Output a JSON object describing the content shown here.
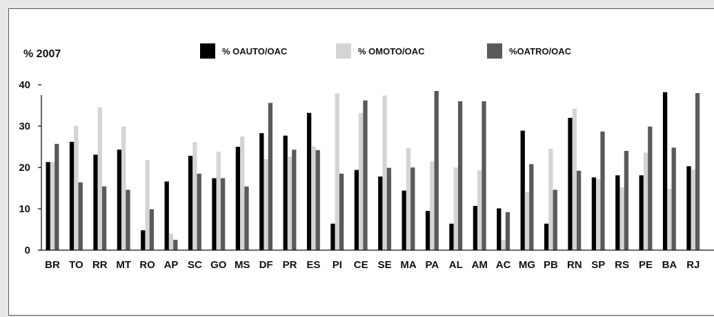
{
  "chart_data": {
    "type": "bar",
    "title": "% 2007",
    "xlabel": "",
    "ylabel": "",
    "ylim": [
      0,
      40
    ],
    "yticks": [
      "0",
      "10",
      "20",
      "30",
      "40"
    ],
    "grid": false,
    "legend_position": "top",
    "categories": [
      "BR",
      "TO",
      "RR",
      "MT",
      "RO",
      "AP",
      "SC",
      "GO",
      "MS",
      "DF",
      "PR",
      "ES",
      "PI",
      "CE",
      "SE",
      "MA",
      "PA",
      "AL",
      "AM",
      "AC",
      "MG",
      "PB",
      "RN",
      "SP",
      "RS",
      "PE",
      "BA",
      "RJ"
    ],
    "series": [
      {
        "name": "% OAUTO/OAC",
        "color": "#000000",
        "values": [
          21.3,
          26.2,
          23.1,
          24.3,
          4.8,
          16.6,
          22.8,
          17.4,
          25.0,
          28.3,
          27.7,
          33.2,
          6.4,
          19.4,
          17.8,
          14.4,
          9.5,
          6.4,
          10.7,
          10.1,
          28.9,
          6.4,
          32.0,
          17.6,
          18.1,
          18.1,
          38.2,
          20.3
        ]
      },
      {
        "name": "% OMOTO/OAC",
        "color": "#d4d4d4",
        "values": [
          21.3,
          30.1,
          34.5,
          29.9,
          21.8,
          4.0,
          26.1,
          23.8,
          27.5,
          22.0,
          22.6,
          25.1,
          37.9,
          33.2,
          37.4,
          24.7,
          21.5,
          20.0,
          19.3,
          2.4,
          14.1,
          24.5,
          34.2,
          17.2,
          15.2,
          23.6,
          14.8,
          19.5
        ]
      },
      {
        "name": "%OATRO/OAC",
        "color": "#5a5a5a",
        "values": [
          25.7,
          16.4,
          15.4,
          14.6,
          9.9,
          2.5,
          18.5,
          17.4,
          15.4,
          35.6,
          24.3,
          24.2,
          18.5,
          36.2,
          19.9,
          20.0,
          38.5,
          36.0,
          36.0,
          9.2,
          20.8,
          14.6,
          19.2,
          28.7,
          24.0,
          29.9,
          24.8,
          38.0
        ]
      }
    ]
  }
}
